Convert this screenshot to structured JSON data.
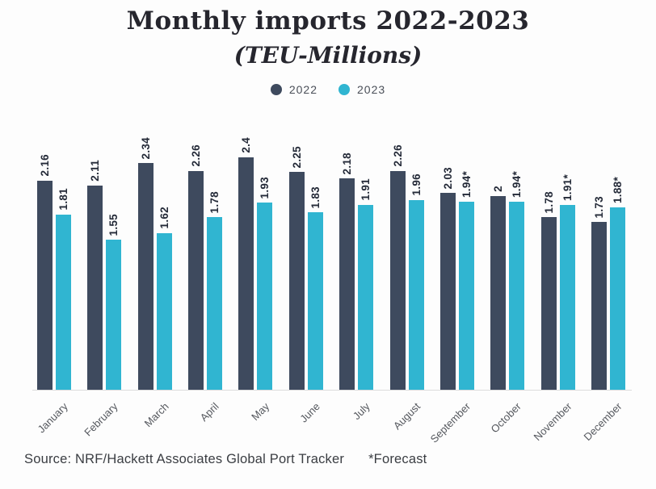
{
  "title": "Monthly imports 2022-2023",
  "subtitle": "(TEU-Millions)",
  "legend": [
    {
      "label": "2022",
      "color": "#3e4a5e"
    },
    {
      "label": "2023",
      "color": "#30b5d1"
    }
  ],
  "footer": {
    "source": "Source: NRF/Hackett Associates Global Port Tracker",
    "forecast_note": "*Forecast"
  },
  "chart_data": {
    "type": "bar",
    "title": "Monthly imports 2022-2023",
    "subtitle": "(TEU-Millions)",
    "unit": "TEU-Millions",
    "categories": [
      "January",
      "February",
      "March",
      "April",
      "May",
      "June",
      "July",
      "August",
      "September",
      "October",
      "November",
      "December"
    ],
    "series": [
      {
        "name": "2022",
        "color": "#3e4a5e",
        "values": [
          2.16,
          2.11,
          2.34,
          2.26,
          2.4,
          2.25,
          2.18,
          2.26,
          2.03,
          2,
          1.78,
          1.73
        ],
        "labels": [
          "2.16",
          "2.11",
          "2.34",
          "2.26",
          "2.4",
          "2.25",
          "2.18",
          "2.26",
          "2.03",
          "2",
          "1.78",
          "1.73"
        ]
      },
      {
        "name": "2023",
        "color": "#30b5d1",
        "values": [
          1.81,
          1.55,
          1.62,
          1.78,
          1.93,
          1.83,
          1.91,
          1.96,
          1.94,
          1.94,
          1.91,
          1.88
        ],
        "labels": [
          "1.81",
          "1.55",
          "1.62",
          "1.78",
          "1.93",
          "1.83",
          "1.91",
          "1.96",
          "1.94*",
          "1.94*",
          "1.91*",
          "1.88*"
        ]
      }
    ],
    "ylim": [
      0,
      2.5
    ],
    "grid": false,
    "y_axis_visible": false,
    "legend_position": "top",
    "value_label_rotation": -90,
    "category_label_rotation": -45,
    "footnote_marker_meaning": "*Forecast"
  }
}
